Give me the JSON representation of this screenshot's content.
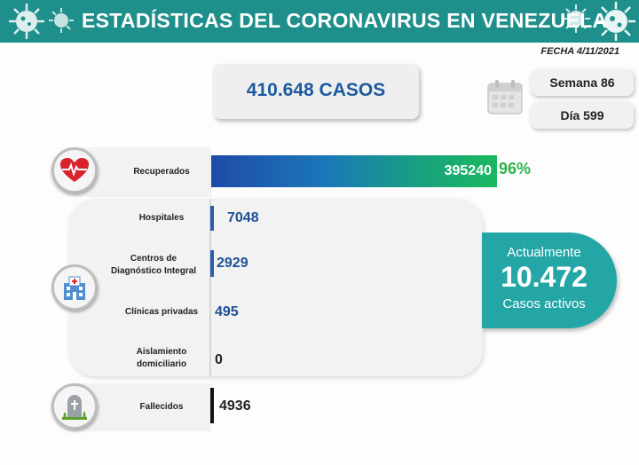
{
  "header": {
    "title": "ESTADÍSTICAS DEL CORONAVIRUS EN VENEZUELA"
  },
  "date": "FECHA 4/11/2021",
  "total_cases": "410.648 CASOS",
  "week": "Semana 86",
  "day": "Día 599",
  "recovered": {
    "label": "Recuperados",
    "value": "395240",
    "percent": "96%",
    "fill_fraction": 0.96
  },
  "hospitalized": {
    "hospitales": {
      "label": "Hospitales",
      "value": "7048"
    },
    "cdi": {
      "label_line1": "Centros de",
      "label_line2": "Diagnóstico Integral",
      "value": "2929"
    },
    "clinicas": {
      "label": "Clínicas privadas",
      "value": "495"
    },
    "aislamiento": {
      "label_line1": "Aislamiento",
      "label_line2": "domiciliario",
      "value": "0"
    }
  },
  "active": {
    "line1": "Actualmente",
    "value": "10.472",
    "line3": "Casos activos"
  },
  "deaths": {
    "label": "Fallecidos",
    "value": "4936"
  },
  "icons": [
    "virus-icon",
    "calendar-icon",
    "heart-icon",
    "hospital-icon",
    "tombstone-icon"
  ],
  "colors": {
    "header": "#1f8f8b",
    "accent_blue": "#1d4f94",
    "active_teal": "#24a6a6",
    "percent_green": "#2eb34a"
  }
}
